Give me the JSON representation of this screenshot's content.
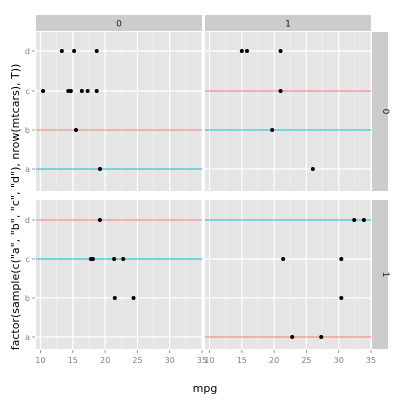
{
  "chart_data": {
    "type": "scatter",
    "title": "",
    "xlabel": "mpg",
    "ylabel": "factor(sample(c(\"a\", \"b\", \"c\", \"d\"), nrow(mtcars), T))",
    "xlim": [
      9.3,
      35
    ],
    "x_ticks": [
      10,
      15,
      20,
      25,
      30,
      35
    ],
    "categories": [
      "a",
      "b",
      "c",
      "d"
    ],
    "facet_cols": [
      "0",
      "1"
    ],
    "facet_rows": [
      "0",
      "1"
    ],
    "grid": true,
    "hline_colors": {
      "red": "#F8766D",
      "teal": "#00BFC4"
    },
    "panels": [
      {
        "col": "0",
        "row": "0",
        "points": [
          {
            "x": 10.4,
            "y": "c"
          },
          {
            "x": 13.3,
            "y": "d"
          },
          {
            "x": 14.3,
            "y": "c"
          },
          {
            "x": 14.7,
            "y": "c"
          },
          {
            "x": 15.2,
            "y": "d"
          },
          {
            "x": 15.5,
            "y": "b"
          },
          {
            "x": 16.4,
            "y": "c"
          },
          {
            "x": 17.3,
            "y": "c"
          },
          {
            "x": 18.7,
            "y": "d"
          },
          {
            "x": 18.7,
            "y": "c"
          },
          {
            "x": 19.2,
            "y": "a"
          }
        ],
        "hlines": [
          {
            "y": "b",
            "color": "red"
          },
          {
            "y": "a",
            "color": "teal"
          }
        ]
      },
      {
        "col": "1",
        "row": "0",
        "points": [
          {
            "x": 15.0,
            "y": "d"
          },
          {
            "x": 15.8,
            "y": "d"
          },
          {
            "x": 21.0,
            "y": "d"
          },
          {
            "x": 21.0,
            "y": "c"
          },
          {
            "x": 19.7,
            "y": "b"
          },
          {
            "x": 26.0,
            "y": "a"
          }
        ],
        "hlines": [
          {
            "y": "c",
            "color": "red"
          },
          {
            "y": "b",
            "color": "teal"
          }
        ]
      },
      {
        "col": "0",
        "row": "1",
        "points": [
          {
            "x": 19.2,
            "y": "d"
          },
          {
            "x": 17.8,
            "y": "c"
          },
          {
            "x": 18.1,
            "y": "c"
          },
          {
            "x": 21.4,
            "y": "c"
          },
          {
            "x": 22.8,
            "y": "c"
          },
          {
            "x": 21.5,
            "y": "b"
          },
          {
            "x": 24.4,
            "y": "b"
          }
        ],
        "hlines": [
          {
            "y": "d",
            "color": "red"
          },
          {
            "y": "c",
            "color": "teal"
          }
        ]
      },
      {
        "col": "1",
        "row": "1",
        "points": [
          {
            "x": 32.4,
            "y": "d"
          },
          {
            "x": 33.9,
            "y": "d"
          },
          {
            "x": 21.4,
            "y": "c"
          },
          {
            "x": 30.4,
            "y": "c"
          },
          {
            "x": 30.4,
            "y": "b"
          },
          {
            "x": 22.8,
            "y": "a"
          },
          {
            "x": 27.3,
            "y": "a"
          }
        ],
        "hlines": [
          {
            "y": "d",
            "color": "teal"
          },
          {
            "y": "a",
            "color": "red"
          }
        ]
      }
    ]
  }
}
